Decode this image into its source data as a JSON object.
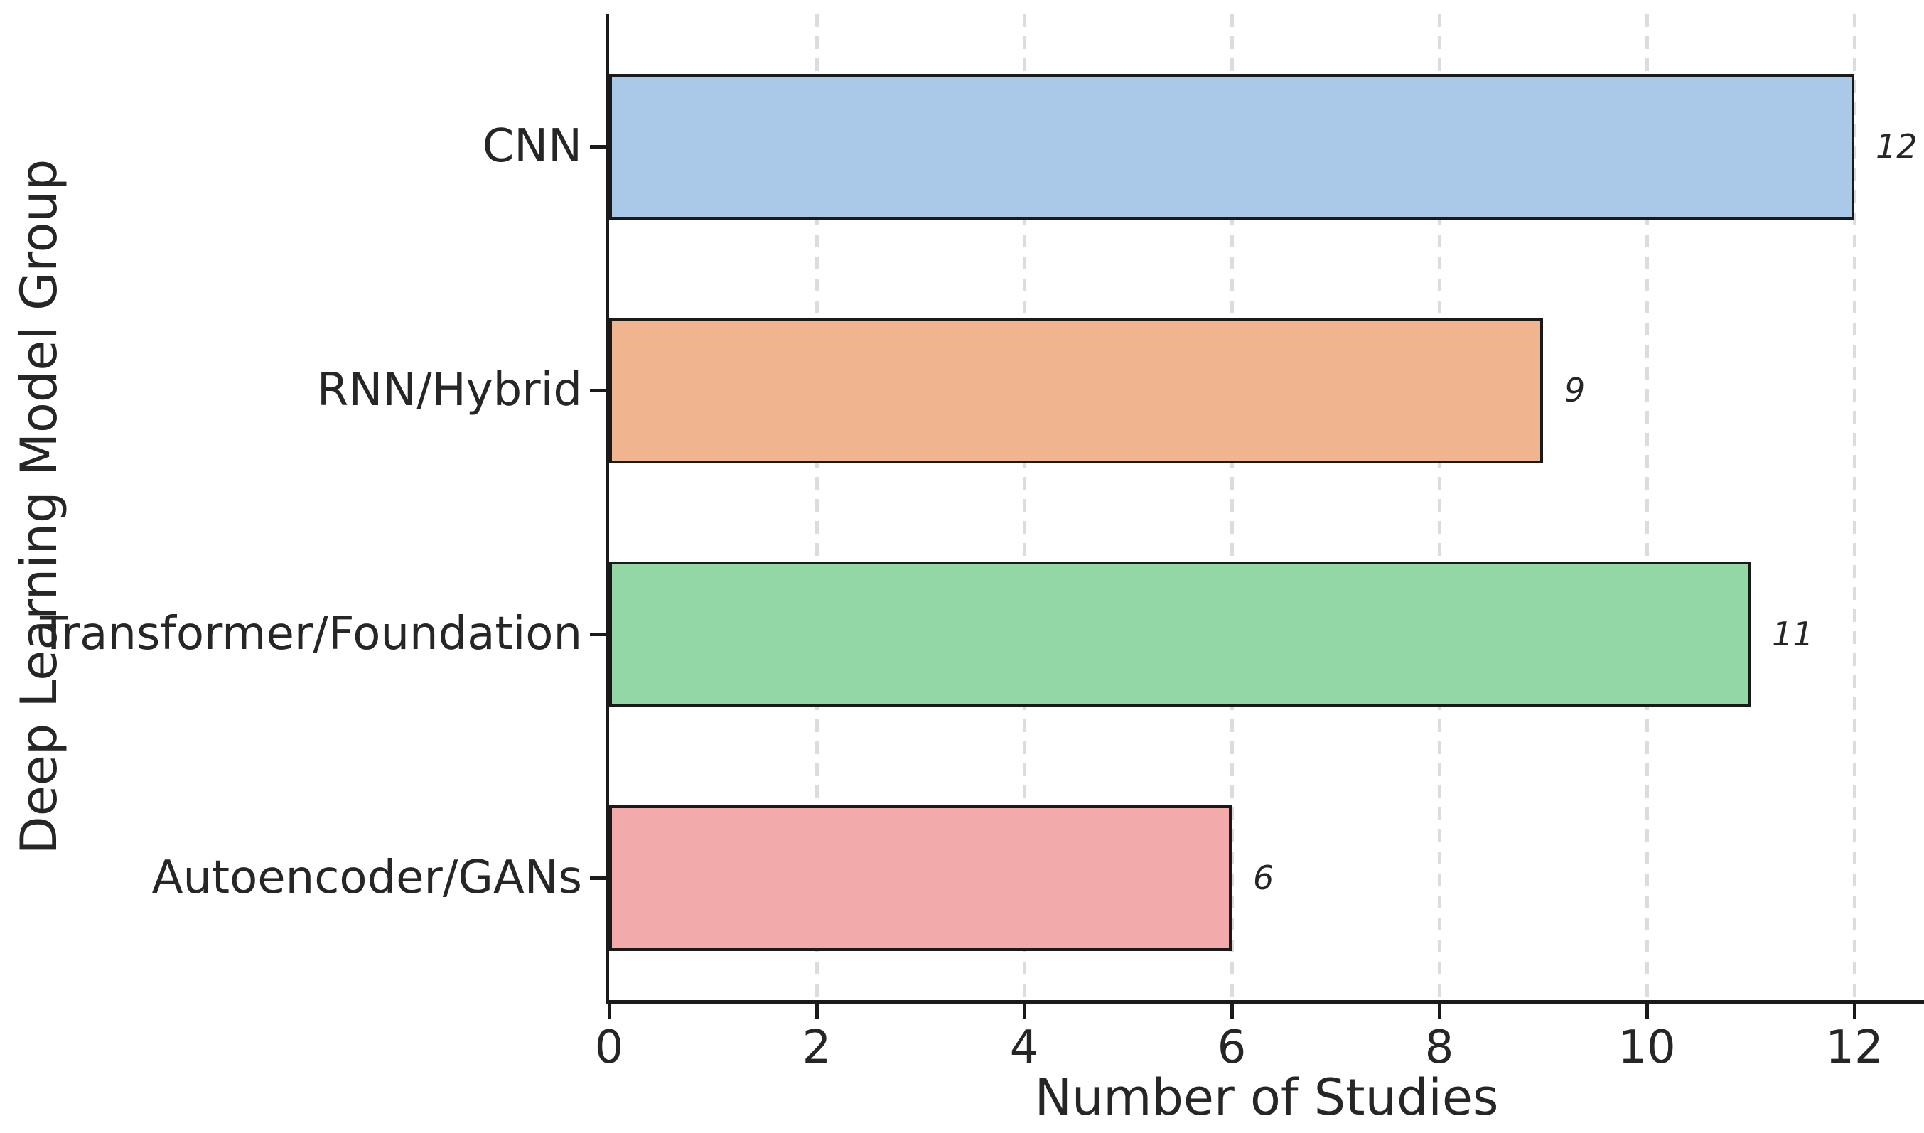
{
  "chart_data": {
    "type": "bar",
    "orientation": "horizontal",
    "categories": [
      "CNN",
      "RNN/Hybrid",
      "Transformer/Foundation",
      "Autoencoder/GANs"
    ],
    "values": [
      12,
      9,
      11,
      6
    ],
    "value_labels": [
      "12",
      "9",
      "11",
      "6"
    ],
    "bar_colors": [
      "#aac9e8",
      "#f0b48e",
      "#93d7a6",
      "#f2aaab"
    ],
    "bar_edge_color": "#1a1a1a",
    "xlabel": "Number of Studies",
    "ylabel": "Deep Learning Model Group",
    "xticks": [
      0,
      2,
      4,
      6,
      8,
      10,
      12
    ],
    "xtick_labels": [
      "0",
      "2",
      "4",
      "6",
      "8",
      "10",
      "12"
    ],
    "xlim": [
      0,
      12.67
    ],
    "grid": "vertical-dashed",
    "grid_color": "#dcdcdc",
    "text_color": "#262626",
    "background_color": "#ffffff",
    "legend": "none",
    "title": ""
  }
}
